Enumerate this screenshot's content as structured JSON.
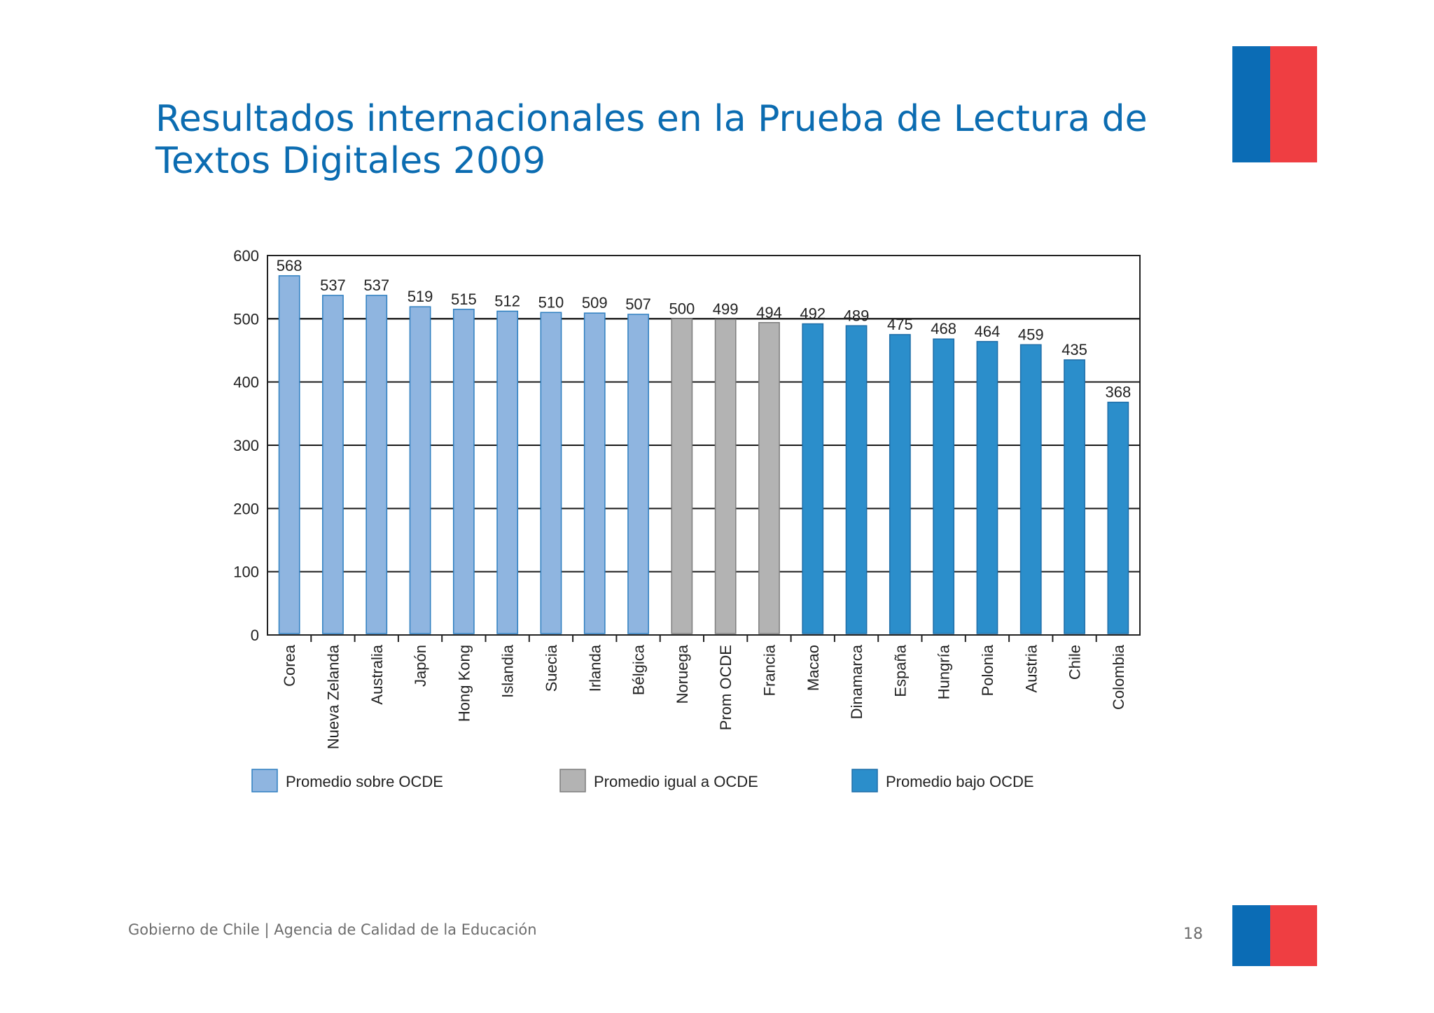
{
  "slide": {
    "title": "Resultados internacionales en la Prueba de Lectura de Textos Digitales 2009",
    "footer": "Gobierno de Chile | Agencia de Calidad de la Educación",
    "page_number": "18",
    "brand_colors": {
      "blue": "#0b6cb5",
      "red": "#ef3e42",
      "title": "#0b6cb1"
    }
  },
  "chart_data": {
    "type": "bar",
    "title": "",
    "xlabel": "",
    "ylabel": "",
    "ylim": [
      0,
      600
    ],
    "yticks": [
      0,
      100,
      200,
      300,
      400,
      500,
      600
    ],
    "grid": true,
    "reference_line": 500,
    "categories": [
      "Corea",
      "Nueva Zelanda",
      "Australia",
      "Japón",
      "Hong Kong",
      "Islandia",
      "Suecia",
      "Irlanda",
      "Bélgica",
      "Noruega",
      "Prom OCDE",
      "Francia",
      "Macao",
      "Dinamarca",
      "España",
      "Hungría",
      "Polonia",
      "Austria",
      "Chile",
      "Colombia"
    ],
    "values": [
      568,
      537,
      537,
      519,
      515,
      512,
      510,
      509,
      507,
      500,
      499,
      494,
      492,
      489,
      475,
      468,
      464,
      459,
      435,
      368
    ],
    "groups": [
      "sobre",
      "sobre",
      "sobre",
      "sobre",
      "sobre",
      "sobre",
      "sobre",
      "sobre",
      "sobre",
      "igual",
      "igual",
      "igual",
      "bajo",
      "bajo",
      "bajo",
      "bajo",
      "bajo",
      "bajo",
      "bajo",
      "bajo"
    ],
    "legend": [
      {
        "key": "sobre",
        "label": "Promedio sobre OCDE",
        "color": "#8fb5e0"
      },
      {
        "key": "igual",
        "label": "Promedio igual a OCDE",
        "color": "#b3b3b3"
      },
      {
        "key": "bajo",
        "label": "Promedio bajo OCDE",
        "color": "#2b8ecb"
      }
    ],
    "legend_position": "bottom"
  }
}
